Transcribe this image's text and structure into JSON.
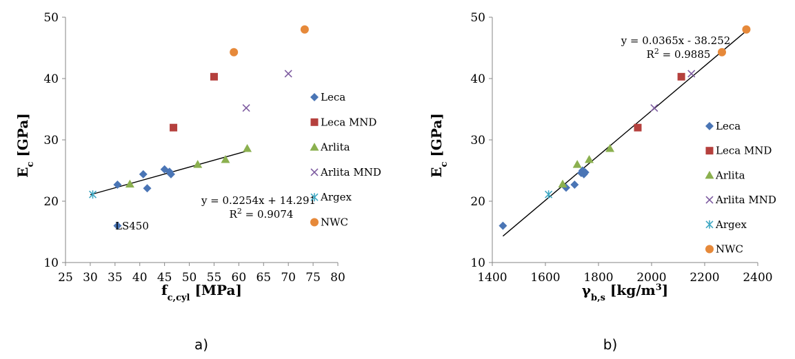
{
  "colors": {
    "Leca": "#4a75b5",
    "Leca MND": "#b5403d",
    "Arlita": "#8bb04f",
    "Arlita MND": "#7d5ba0",
    "Argex": "#3fa8c3",
    "NWC": "#e6893a"
  },
  "chart_data": [
    {
      "type": "scatter",
      "panel_label": "a)",
      "xlabel_main": "f",
      "xlabel_sub": "c,cyl",
      "xlabel_unit": "[MPa]",
      "ylabel_main": "E",
      "ylabel_sub": "c",
      "ylabel_unit": "[GPa]",
      "xlim": [
        25,
        80
      ],
      "ylim": [
        10,
        50
      ],
      "xticks": [
        25,
        30,
        35,
        40,
        45,
        50,
        55,
        60,
        65,
        70,
        75,
        80
      ],
      "yticks": [
        10,
        20,
        30,
        40,
        50
      ],
      "legend_position": "right",
      "series": [
        {
          "name": "Leca",
          "marker": "diamond",
          "points": [
            [
              35.5,
              22.7
            ],
            [
              40.7,
              24.4
            ],
            [
              41.5,
              22.1
            ],
            [
              45.0,
              25.2
            ],
            [
              46.0,
              24.8
            ],
            [
              46.3,
              24.4
            ],
            [
              35.5,
              16.0
            ]
          ]
        },
        {
          "name": "Leca MND",
          "marker": "square",
          "points": [
            [
              46.8,
              32.0
            ],
            [
              55.0,
              40.3
            ]
          ]
        },
        {
          "name": "Arlita",
          "marker": "triangle",
          "points": [
            [
              38.0,
              22.8
            ],
            [
              51.7,
              26.0
            ],
            [
              57.3,
              26.8
            ],
            [
              61.7,
              28.6
            ]
          ]
        },
        {
          "name": "Arlita MND",
          "marker": "x",
          "points": [
            [
              61.5,
              35.2
            ],
            [
              70.0,
              40.8
            ]
          ]
        },
        {
          "name": "Argex",
          "marker": "asterisk",
          "points": [
            [
              30.5,
              21.1
            ]
          ]
        },
        {
          "name": "NWC",
          "marker": "circle",
          "points": [
            [
              59.0,
              44.3
            ],
            [
              73.3,
              48.0
            ]
          ]
        }
      ],
      "trendline": {
        "x": [
          30,
          62
        ],
        "equation": "y = 0.2254x + 14.291",
        "r2_label": "R",
        "r2_value": " = 0.9074"
      },
      "annotation": {
        "text": "LS450",
        "x": 38.5,
        "y": 16.0
      }
    },
    {
      "type": "scatter",
      "panel_label": "b)",
      "xlabel_main": "γ",
      "xlabel_sub": "b,s",
      "xlabel_unit": "[kg/m",
      "xlabel_sup": "3",
      "xlabel_end": "]",
      "ylabel_main": "E",
      "ylabel_sub": "c",
      "ylabel_unit": "[GPa]",
      "xlim": [
        1400,
        2400
      ],
      "ylim": [
        10,
        50
      ],
      "xticks": [
        1400,
        1600,
        1800,
        2000,
        2200,
        2400
      ],
      "yticks": [
        10,
        20,
        30,
        40,
        50
      ],
      "legend_position": "right",
      "series": [
        {
          "name": "Leca",
          "marker": "diamond",
          "points": [
            [
              1440,
              16.0
            ],
            [
              1678,
              22.2
            ],
            [
              1710,
              22.7
            ],
            [
              1735,
              24.6
            ],
            [
              1740,
              25.0
            ],
            [
              1745,
              24.4
            ],
            [
              1750,
              24.7
            ]
          ]
        },
        {
          "name": "Leca MND",
          "marker": "square",
          "points": [
            [
              1948,
              32.0
            ],
            [
              2112,
              40.3
            ]
          ]
        },
        {
          "name": "Arlita",
          "marker": "triangle",
          "points": [
            [
              1665,
              22.8
            ],
            [
              1720,
              26.0
            ],
            [
              1765,
              26.8
            ],
            [
              1843,
              28.6
            ]
          ]
        },
        {
          "name": "Arlita MND",
          "marker": "x",
          "points": [
            [
              2010,
              35.2
            ],
            [
              2150,
              40.8
            ]
          ]
        },
        {
          "name": "Argex",
          "marker": "asterisk",
          "points": [
            [
              1612,
              21.1
            ]
          ]
        },
        {
          "name": "NWC",
          "marker": "circle",
          "points": [
            [
              2265,
              44.3
            ],
            [
              2357,
              48.0
            ]
          ]
        }
      ],
      "trendline": {
        "x": [
          1440,
          2360
        ],
        "equation": "y = 0.0365x - 38.252",
        "r2_label": "R",
        "r2_value": " = 0.9885"
      }
    }
  ]
}
